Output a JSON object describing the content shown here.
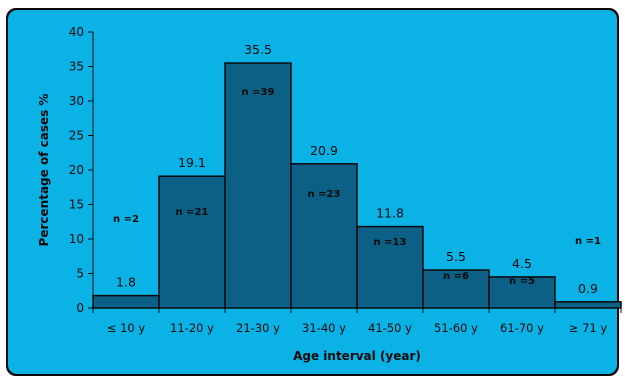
{
  "chart_data": {
    "type": "bar",
    "title": "",
    "xlabel": "Age interval (year)",
    "ylabel": "Percentage of cases %",
    "ylim": [
      0,
      40
    ],
    "yticks": [
      "0",
      "5",
      "10",
      "15",
      "20",
      "25",
      "30",
      "35",
      "40"
    ],
    "grid": false,
    "categories": [
      "≤ 10 y",
      "11-20 y",
      "21-30 y",
      "31-40 y",
      "41-50 y",
      "51-60 y",
      "61-70 y",
      "≥ 71 y"
    ],
    "values": [
      1.8,
      19.1,
      35.5,
      20.9,
      11.8,
      5.5,
      4.5,
      0.9
    ],
    "value_labels": [
      "1.8",
      "19.1",
      "35.5",
      "20.9",
      "11.8",
      "5.5",
      "4.5",
      "0.9"
    ],
    "count_labels": [
      "n =2",
      "n =21",
      "n =39",
      "n =23",
      "n =13",
      "n =6",
      "n =5",
      "n =1"
    ],
    "colors": {
      "background": "#0ab2e6",
      "bar_fill": "#0c5f85",
      "bar_stroke": "#0a0a0a",
      "axis": "#0a0a0a",
      "text": "#0a0a0a"
    }
  }
}
